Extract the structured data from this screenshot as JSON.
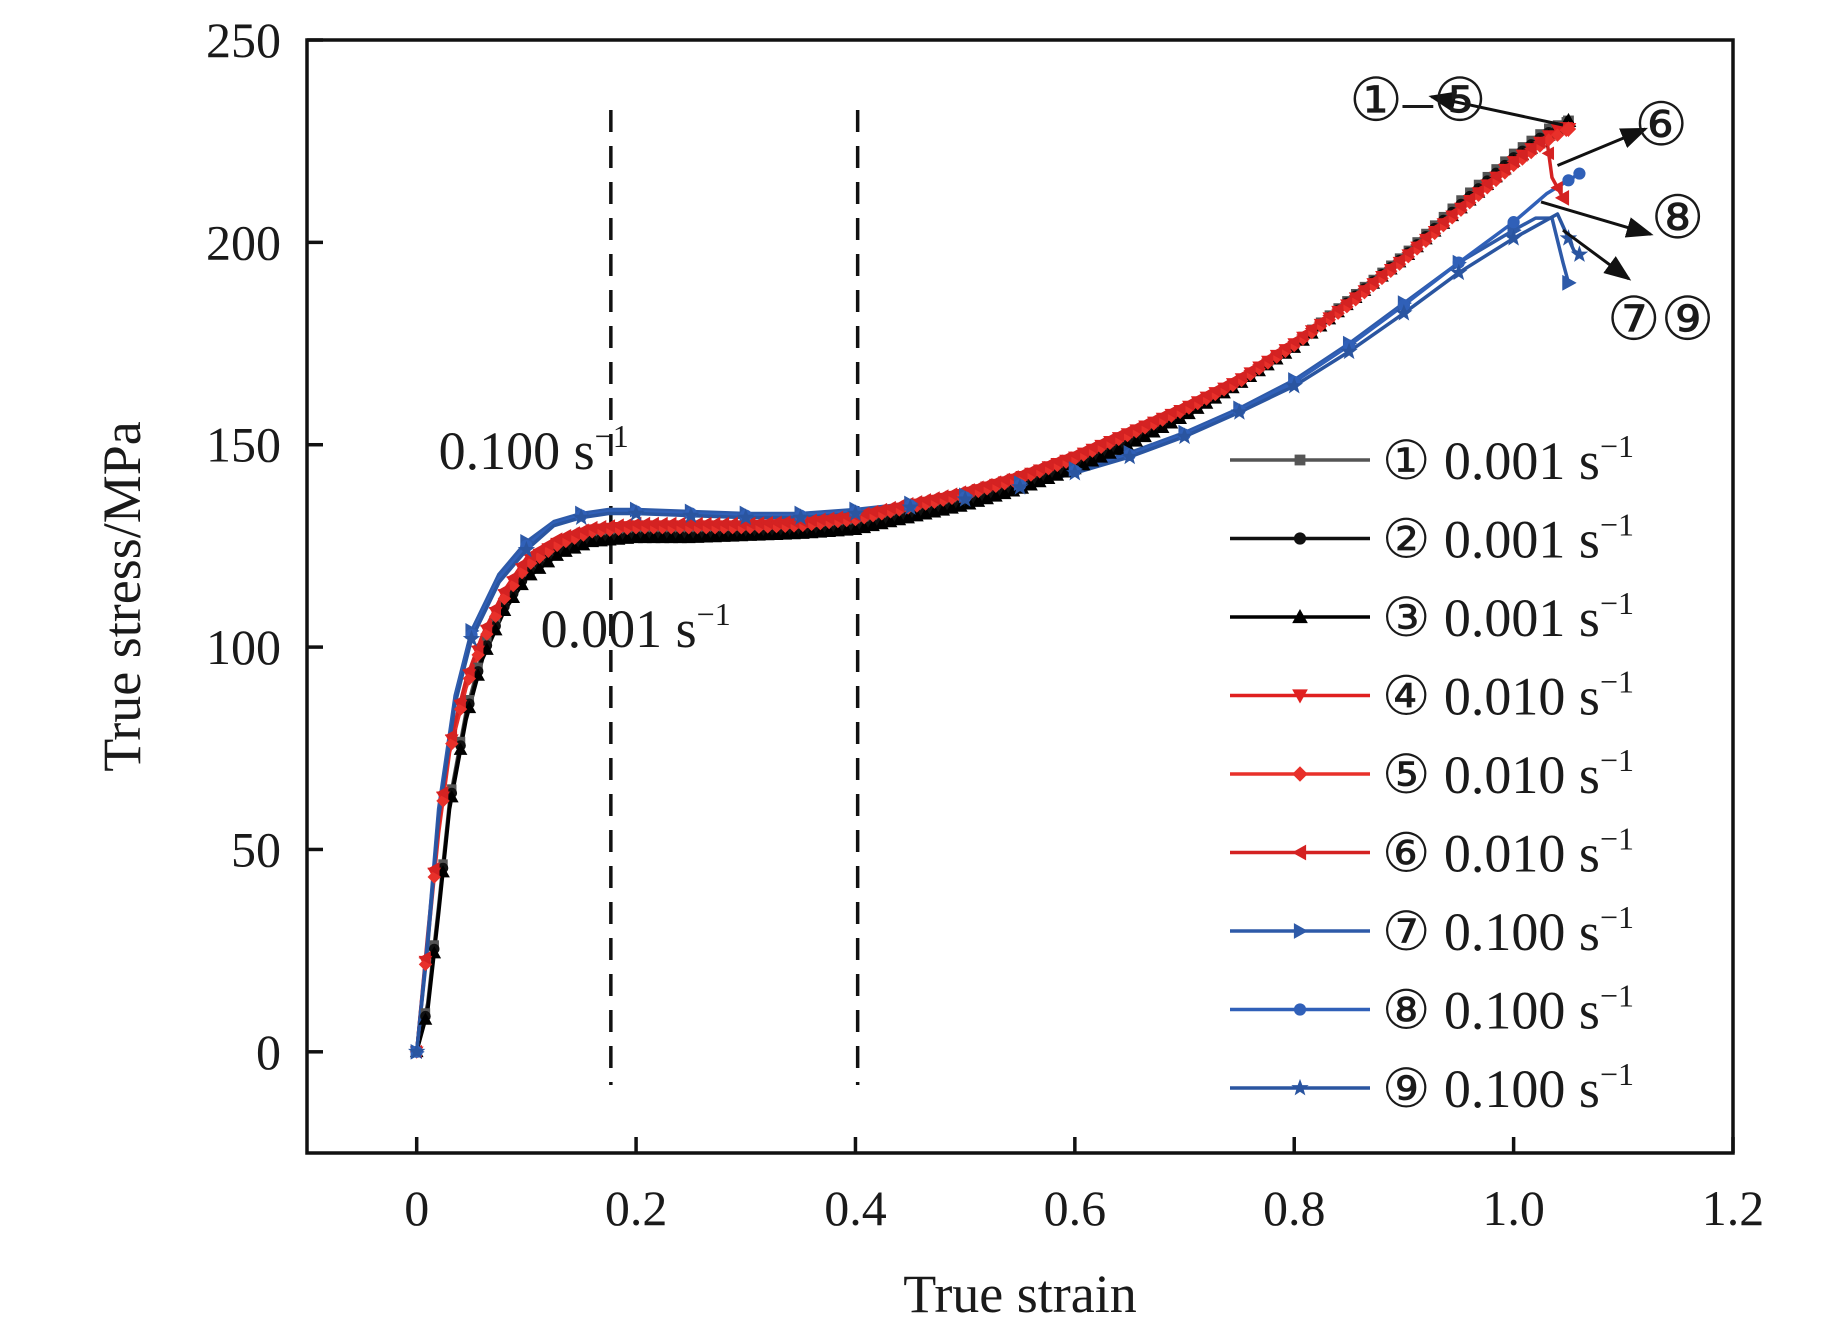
{
  "chart_data": {
    "type": "line",
    "title": "",
    "xlabel": "True strain",
    "ylabel": "True stress/MPa",
    "xlim": [
      -0.1,
      1.2
    ],
    "ylim": [
      -25,
      250
    ],
    "x_ticks": [
      0,
      0.2,
      0.4,
      0.6,
      0.8,
      1.0,
      1.2
    ],
    "x_tick_labels": [
      "0",
      "0.2",
      "0.4",
      "0.6",
      "0.8",
      "1.0",
      "1.2"
    ],
    "y_ticks": [
      0,
      50,
      100,
      150,
      200,
      250
    ],
    "y_tick_labels": [
      "0",
      "50",
      "100",
      "150",
      "200",
      "250"
    ],
    "grid": false,
    "legend_position": "bottom-right",
    "vlines": [
      0.177,
      0.402
    ],
    "series": [
      {
        "name": "① 0.001 s⁻¹",
        "rate_label": "0.001",
        "circled": "①",
        "color": "#555555",
        "marker": "square",
        "x": [
          0,
          0.01,
          0.02,
          0.03,
          0.045,
          0.06,
          0.08,
          0.1,
          0.13,
          0.16,
          0.2,
          0.25,
          0.3,
          0.35,
          0.4,
          0.45,
          0.5,
          0.55,
          0.6,
          0.65,
          0.7,
          0.75,
          0.8,
          0.85,
          0.9,
          0.95,
          1.0,
          1.03,
          1.05
        ],
        "y": [
          0,
          12,
          36,
          62,
          84,
          99,
          111,
          119,
          124,
          127,
          128,
          128,
          128.5,
          129,
          130,
          133,
          136,
          140,
          145,
          151,
          158,
          166,
          175,
          186,
          197,
          210,
          222,
          228,
          230
        ]
      },
      {
        "name": "② 0.001 s⁻¹",
        "rate_label": "0.001",
        "circled": "②",
        "color": "#111111",
        "marker": "circle",
        "x": [
          0,
          0.01,
          0.02,
          0.03,
          0.045,
          0.06,
          0.08,
          0.1,
          0.13,
          0.16,
          0.2,
          0.25,
          0.3,
          0.35,
          0.4,
          0.45,
          0.5,
          0.55,
          0.6,
          0.65,
          0.7,
          0.75,
          0.8,
          0.85,
          0.9,
          0.95,
          1.0,
          1.03,
          1.05
        ],
        "y": [
          0,
          11,
          35,
          61,
          83,
          98,
          110,
          118,
          124,
          126.5,
          127.5,
          127.5,
          128,
          128.5,
          129.5,
          132.5,
          135.5,
          139.5,
          144.5,
          150.5,
          157.5,
          165.5,
          174.5,
          185.5,
          196.5,
          209,
          221,
          227,
          229
        ]
      },
      {
        "name": "③ 0.001 s⁻¹",
        "rate_label": "0.001",
        "circled": "③",
        "color": "#000000",
        "marker": "triangle-up",
        "x": [
          0,
          0.01,
          0.02,
          0.03,
          0.045,
          0.06,
          0.08,
          0.1,
          0.13,
          0.16,
          0.2,
          0.25,
          0.3,
          0.35,
          0.4,
          0.45,
          0.5,
          0.55,
          0.6,
          0.65,
          0.7,
          0.75,
          0.8,
          0.85,
          0.9,
          0.95,
          1.0,
          1.03,
          1.05
        ],
        "y": [
          0,
          10,
          34,
          60,
          82,
          97,
          109,
          117,
          123,
          126,
          127,
          127,
          127.5,
          128,
          129,
          132,
          135,
          139,
          144,
          150,
          157,
          165,
          174,
          185,
          196,
          208,
          220,
          226,
          230
        ]
      },
      {
        "name": "④ 0.010 s⁻¹",
        "rate_label": "0.010",
        "circled": "④",
        "color": "#e02020",
        "marker": "triangle-down",
        "x": [
          0,
          0.01,
          0.02,
          0.03,
          0.045,
          0.06,
          0.08,
          0.1,
          0.13,
          0.16,
          0.2,
          0.25,
          0.3,
          0.35,
          0.4,
          0.45,
          0.5,
          0.55,
          0.6,
          0.65,
          0.7,
          0.75,
          0.8,
          0.85,
          0.9,
          0.95,
          1.0,
          1.03,
          1.045,
          1.05
        ],
        "y": [
          0,
          28,
          55,
          75,
          91,
          102,
          113,
          121,
          126,
          129,
          130,
          130,
          130,
          130.5,
          132,
          135,
          138,
          142,
          147,
          153,
          159,
          166,
          175,
          185,
          196,
          208,
          220,
          226,
          229,
          228
        ]
      },
      {
        "name": "⑤ 0.010 s⁻¹",
        "rate_label": "0.010",
        "circled": "⑤",
        "color": "#e8302a",
        "marker": "diamond",
        "x": [
          0,
          0.01,
          0.02,
          0.03,
          0.045,
          0.06,
          0.08,
          0.1,
          0.13,
          0.16,
          0.2,
          0.25,
          0.3,
          0.35,
          0.4,
          0.45,
          0.5,
          0.55,
          0.6,
          0.65,
          0.7,
          0.75,
          0.8,
          0.85,
          0.9,
          0.95,
          1.0,
          1.03,
          1.05
        ],
        "y": [
          0,
          27,
          54,
          74,
          90,
          101,
          112,
          120,
          125.5,
          128.5,
          129.5,
          129.5,
          129.5,
          130,
          131.5,
          134.5,
          137.5,
          141.5,
          146.5,
          152.5,
          158.5,
          165.5,
          174.5,
          184.5,
          195.5,
          207.5,
          219,
          225,
          228
        ]
      },
      {
        "name": "⑥ 0.010 s⁻¹",
        "rate_label": "0.010",
        "circled": "⑥",
        "color": "#d42222",
        "marker": "triangle-left",
        "x": [
          0,
          0.01,
          0.02,
          0.03,
          0.045,
          0.06,
          0.08,
          0.1,
          0.13,
          0.16,
          0.2,
          0.25,
          0.3,
          0.35,
          0.4,
          0.45,
          0.5,
          0.55,
          0.6,
          0.65,
          0.7,
          0.75,
          0.8,
          0.85,
          0.9,
          0.95,
          1.0,
          1.02,
          1.03,
          1.035,
          1.045
        ],
        "y": [
          0,
          29,
          56,
          76,
          92,
          103,
          114,
          122,
          127,
          129.5,
          130.5,
          130.5,
          130.5,
          131,
          132.5,
          135.5,
          138.5,
          142.5,
          147.5,
          153.5,
          159.5,
          166.5,
          175.5,
          185.5,
          196.5,
          208.5,
          220,
          224,
          226,
          216,
          211
        ]
      },
      {
        "name": "⑦ 0.100 s⁻¹",
        "rate_label": "0.100",
        "circled": "⑦",
        "color": "#2e5aa8",
        "marker": "triangle-right",
        "x": [
          0,
          0.01,
          0.02,
          0.035,
          0.05,
          0.075,
          0.1,
          0.125,
          0.15,
          0.175,
          0.2,
          0.25,
          0.3,
          0.35,
          0.4,
          0.45,
          0.5,
          0.55,
          0.6,
          0.65,
          0.7,
          0.75,
          0.8,
          0.85,
          0.9,
          0.95,
          1.0,
          1.02,
          1.035,
          1.045,
          1.05
        ],
        "y": [
          0,
          28,
          60,
          88,
          104,
          118,
          126,
          131,
          133,
          134,
          134,
          133.5,
          133,
          133,
          134,
          135.5,
          137.5,
          140.5,
          144,
          148,
          153,
          159,
          166,
          175,
          185,
          195,
          203,
          206,
          206,
          195,
          190
        ]
      },
      {
        "name": "⑧ 0.100 s⁻¹",
        "rate_label": "0.100",
        "circled": "⑧",
        "color": "#3060b8",
        "marker": "circle",
        "x": [
          0,
          0.01,
          0.02,
          0.035,
          0.05,
          0.075,
          0.1,
          0.125,
          0.15,
          0.175,
          0.2,
          0.25,
          0.3,
          0.35,
          0.4,
          0.45,
          0.5,
          0.55,
          0.6,
          0.65,
          0.7,
          0.75,
          0.8,
          0.85,
          0.9,
          0.95,
          1.0,
          1.03,
          1.06
        ],
        "y": [
          0,
          27,
          59,
          87,
          103,
          117,
          125,
          130.5,
          132.5,
          133.5,
          133.5,
          133,
          132.5,
          132.5,
          133.5,
          135,
          137,
          140,
          143.5,
          147.5,
          152.5,
          158.5,
          165.5,
          174.5,
          184.5,
          195,
          205,
          212,
          217
        ]
      },
      {
        "name": "⑨ 0.100 s⁻¹",
        "rate_label": "0.100",
        "circled": "⑨",
        "color": "#2a55a0",
        "marker": "star",
        "x": [
          0,
          0.01,
          0.02,
          0.035,
          0.05,
          0.075,
          0.1,
          0.125,
          0.15,
          0.175,
          0.2,
          0.25,
          0.3,
          0.35,
          0.4,
          0.45,
          0.5,
          0.55,
          0.6,
          0.65,
          0.7,
          0.75,
          0.8,
          0.85,
          0.9,
          0.95,
          1.0,
          1.02,
          1.04,
          1.055,
          1.06
        ],
        "y": [
          0,
          26,
          58,
          86,
          102,
          116,
          124,
          130,
          132,
          133,
          133,
          132.5,
          132,
          132,
          133,
          134.5,
          136.5,
          139.5,
          143,
          147,
          152,
          158,
          164.5,
          173,
          182.5,
          192.5,
          201,
          204,
          207,
          198,
          197
        ]
      }
    ],
    "annotations": [
      {
        "text": "0.100",
        "unit": "s",
        "exp": "−1",
        "x": 0.02,
        "y": 144
      },
      {
        "text": "0.001",
        "unit": "s",
        "exp": "−1",
        "x": 0.113,
        "y": 100
      }
    ],
    "callouts": [
      {
        "text": "①–⑤",
        "x": 0.85,
        "y": 235,
        "arrow_from": [
          1.045,
          229
        ],
        "arrow_to": [
          0.925,
          236
        ]
      },
      {
        "text": "⑥",
        "x": 1.11,
        "y": 229,
        "arrow_from": [
          1.04,
          219
        ],
        "arrow_to": [
          1.12,
          228
        ]
      },
      {
        "text": "⑧",
        "x": 1.125,
        "y": 206,
        "arrow_from": [
          1.025,
          210
        ],
        "arrow_to": [
          1.125,
          202
        ]
      },
      {
        "text": "⑦⑨",
        "x": 1.085,
        "y": 181,
        "arrow_from": [
          1.045,
          203
        ],
        "arrow_to": [
          1.105,
          191
        ]
      }
    ]
  }
}
